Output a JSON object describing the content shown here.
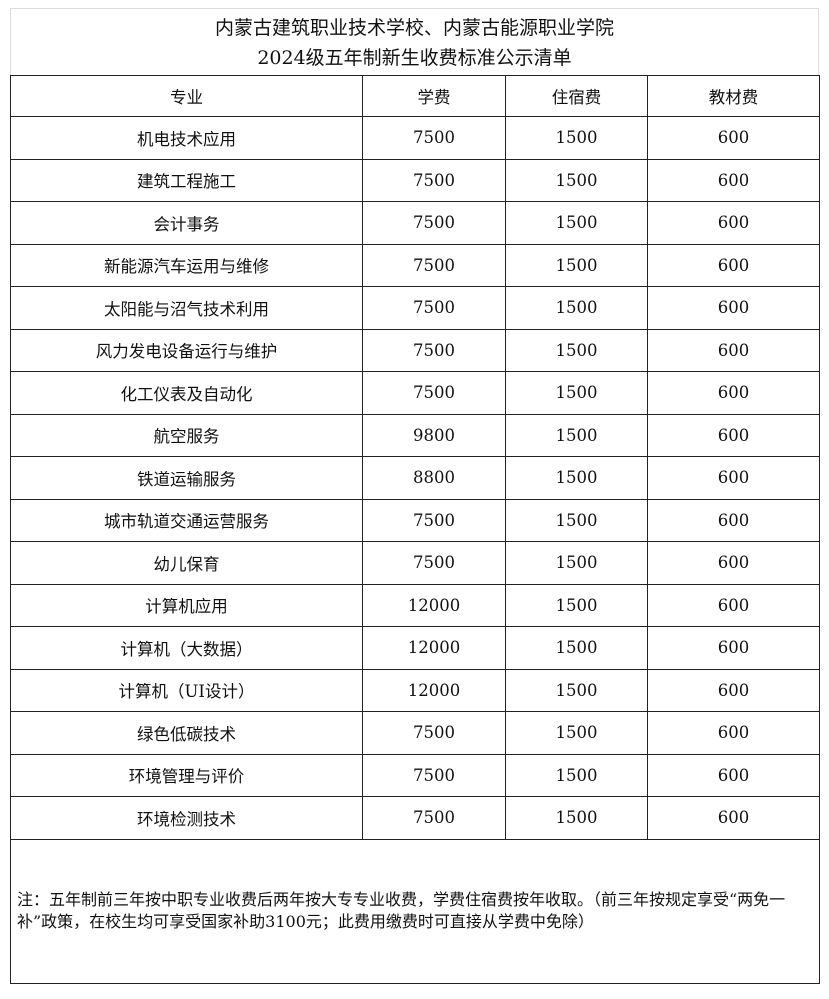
{
  "title": {
    "line1": "内蒙古建筑职业技术学校、内蒙古能源职业学院",
    "line2": "2024级五年制新生收费标准公示清单"
  },
  "table": {
    "headers": [
      "专业",
      "学费",
      "住宿费",
      "教材费"
    ],
    "rows": [
      [
        "机电技术应用",
        "7500",
        "1500",
        "600"
      ],
      [
        "建筑工程施工",
        "7500",
        "1500",
        "600"
      ],
      [
        "会计事务",
        "7500",
        "1500",
        "600"
      ],
      [
        "新能源汽车运用与维修",
        "7500",
        "1500",
        "600"
      ],
      [
        "太阳能与沼气技术利用",
        "7500",
        "1500",
        "600"
      ],
      [
        "风力发电设备运行与维护",
        "7500",
        "1500",
        "600"
      ],
      [
        "化工仪表及自动化",
        "7500",
        "1500",
        "600"
      ],
      [
        "航空服务",
        "9800",
        "1500",
        "600"
      ],
      [
        "铁道运输服务",
        "8800",
        "1500",
        "600"
      ],
      [
        "城市轨道交通运营服务",
        "7500",
        "1500",
        "600"
      ],
      [
        "幼儿保育",
        "7500",
        "1500",
        "600"
      ],
      [
        "计算机应用",
        "12000",
        "1500",
        "600"
      ],
      [
        "计算机（大数据）",
        "12000",
        "1500",
        "600"
      ],
      [
        "计算机（UI设计）",
        "12000",
        "1500",
        "600"
      ],
      [
        "绿色低碳技术",
        "7500",
        "1500",
        "600"
      ],
      [
        "环境管理与评价",
        "7500",
        "1500",
        "600"
      ],
      [
        "环境检测技术",
        "7500",
        "1500",
        "600"
      ]
    ]
  },
  "note": "注：五年制前三年按中职专业收费后两年按大专专业收费，学费住宿费按年收取。（前三年按规定享受“两免一补”政策，在校生均可享受国家补助3100元；此费用缴费时可直接从学费中免除）"
}
